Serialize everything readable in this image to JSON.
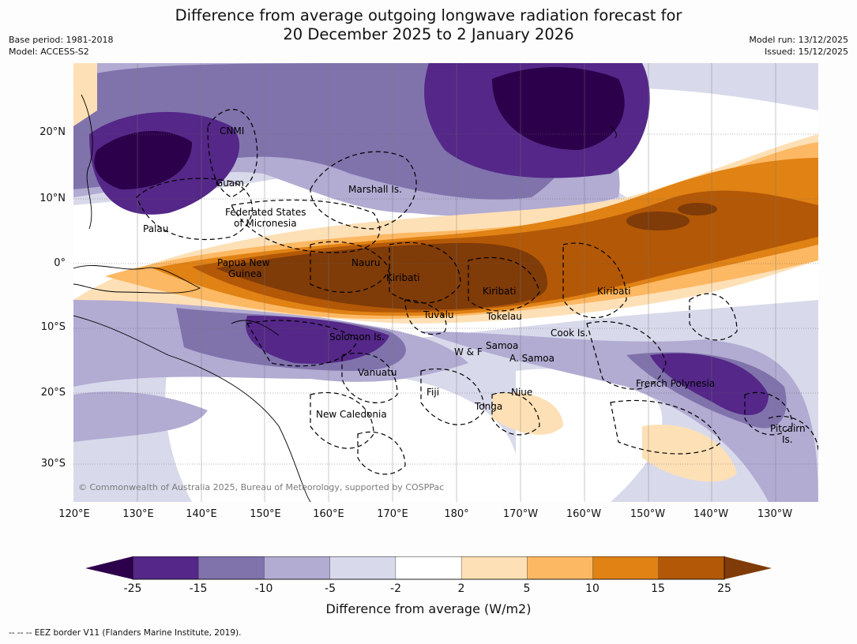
{
  "title": {
    "line1": "Difference from average outgoing longwave radiation forecast for",
    "line2": "20 December 2025 to 2 January 2026"
  },
  "meta": {
    "base_period": "Base period: 1981-2018",
    "model": "Model: ACCESS-S2",
    "model_run": "Model run: 13/12/2025",
    "issued": "Issued: 15/12/2025"
  },
  "map": {
    "lat_ticks": [
      "20°N",
      "10°N",
      "0°",
      "10°S",
      "20°S",
      "30°S"
    ],
    "lon_ticks": [
      "120°E",
      "130°E",
      "140°E",
      "150°E",
      "160°E",
      "170°E",
      "180°",
      "170°W",
      "160°W",
      "150°W",
      "140°W",
      "130°W"
    ],
    "labels": {
      "cnmi": "CNMI",
      "guam": "Guam",
      "marshall": "Marshall Is.",
      "micronesia_1": "Federated States",
      "micronesia_2": "of Micronesia",
      "palau": "Palau",
      "png_1": "Papua New",
      "png_2": "Guinea",
      "nauru": "Nauru",
      "kiribati_w": "Kiribati",
      "kiribati_c": "Kiribati",
      "kiribati_e": "Kiribati",
      "tuvalu": "Tuvalu",
      "tokelau": "Tokelau",
      "cook": "Cook Is.",
      "solomon": "Solomon Is.",
      "samoa": "Samoa",
      "wf": "W & F",
      "asamoa": "A. Samoa",
      "vanuatu": "Vanuatu",
      "fiji": "Fiji",
      "niue": "Niue",
      "tonga": "Tonga",
      "french_polynesia": "French Polynesia",
      "new_caledonia": "New Caledonia",
      "pitcairn_1": "Pitcairn",
      "pitcairn_2": "Is."
    },
    "copyright": "© Commonwealth of Australia 2025, Bureau of Meteorology, supported by COSPPac"
  },
  "colorbar": {
    "colors": [
      "#2d004b",
      "#542788",
      "#8073ac",
      "#b2abd2",
      "#d8daeb",
      "#ffffff",
      "#fee0b6",
      "#fdb863",
      "#e08214",
      "#b35806",
      "#7f3b08"
    ],
    "tick_labels": [
      "-25",
      "-15",
      "-10",
      "-5",
      "-2",
      "2",
      "5",
      "10",
      "15",
      "25"
    ],
    "title": "Difference from average (W/m2)"
  },
  "footnote": "-- -- -- EEZ border V11 (Flanders Marine Institute, 2019)."
}
